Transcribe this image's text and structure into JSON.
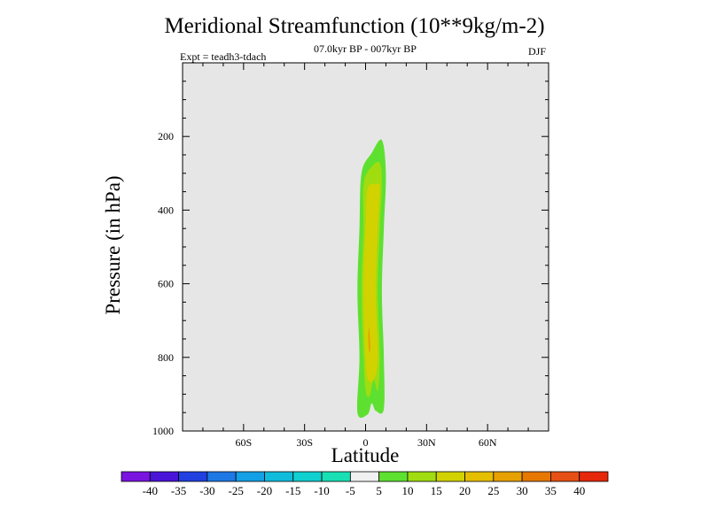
{
  "chart_data": {
    "type": "contour",
    "title": "Meridional Streamfunction (10**9kg/m-2)",
    "subtitle": "07.0kyr BP - 007kyr BP",
    "experiment": "Expt = teadh3-tdach",
    "season": "DJF",
    "xlabel": "Latitude",
    "ylabel": "Pressure (in hPa)",
    "xlim": [
      -90,
      90
    ],
    "ylim": [
      1000,
      0
    ],
    "x_ticks": [
      {
        "value": -60,
        "label": "60S"
      },
      {
        "value": -30,
        "label": "30S"
      },
      {
        "value": 0,
        "label": "0"
      },
      {
        "value": 30,
        "label": "30N"
      },
      {
        "value": 60,
        "label": "60N"
      }
    ],
    "y_ticks": [
      {
        "value": 200,
        "label": "200"
      },
      {
        "value": 400,
        "label": "400"
      },
      {
        "value": 600,
        "label": "600"
      },
      {
        "value": 800,
        "label": "800"
      },
      {
        "value": 1000,
        "label": "1000"
      }
    ],
    "background_color": "#e6e6e6",
    "colorbar": {
      "levels": [
        "-40",
        "-35",
        "-30",
        "-25",
        "-20",
        "-15",
        "-10",
        "-5",
        "5",
        "10",
        "15",
        "20",
        "25",
        "30",
        "35",
        "40"
      ],
      "colors": [
        "#7a14e0",
        "#4a14d8",
        "#2040e0",
        "#1e78e6",
        "#14a0e6",
        "#10bcdc",
        "#10d0d0",
        "#18e0b4",
        "#f0f0f0",
        "#5ee030",
        "#a0dc10",
        "#d2d200",
        "#e6be00",
        "#e6a000",
        "#e67800",
        "#e65014",
        "#e6280a"
      ]
    },
    "contours": [
      {
        "level": "5 to 10",
        "color": "#5ee030",
        "points": [
          [
            -4,
            950
          ],
          [
            -3,
            800
          ],
          [
            -4,
            620
          ],
          [
            -3,
            450
          ],
          [
            -2,
            300
          ],
          [
            3,
            245
          ],
          [
            8,
            210
          ],
          [
            10,
            300
          ],
          [
            9,
            450
          ],
          [
            8,
            620
          ],
          [
            9,
            800
          ],
          [
            9,
            940
          ],
          [
            5,
            945
          ],
          [
            3,
            925
          ],
          [
            1,
            955
          ]
        ]
      },
      {
        "level": "10 to 15",
        "color": "#a0dc10",
        "points": [
          [
            0,
            890
          ],
          [
            -1,
            800
          ],
          [
            -2,
            620
          ],
          [
            -1,
            450
          ],
          [
            -1,
            330
          ],
          [
            3,
            282
          ],
          [
            7,
            272
          ],
          [
            8,
            330
          ],
          [
            7,
            450
          ],
          [
            6,
            620
          ],
          [
            7,
            800
          ],
          [
            6,
            890
          ],
          [
            4,
            860
          ],
          [
            2,
            905
          ]
        ]
      },
      {
        "level": "15 to 20",
        "color": "#d2d200",
        "points": [
          [
            1,
            860
          ],
          [
            0,
            800
          ],
          [
            -1,
            620
          ],
          [
            0,
            450
          ],
          [
            1,
            342
          ],
          [
            5,
            330
          ],
          [
            7,
            340
          ],
          [
            6,
            450
          ],
          [
            5,
            620
          ],
          [
            6,
            800
          ],
          [
            4,
            860
          ]
        ]
      },
      {
        "level": "25 to 30",
        "color": "#e6a000",
        "points": [
          [
            1.5,
            770
          ],
          [
            1.3,
            740
          ],
          [
            1.7,
            718
          ],
          [
            2.1,
            742
          ],
          [
            2.3,
            772
          ],
          [
            1.9,
            788
          ]
        ]
      }
    ]
  }
}
